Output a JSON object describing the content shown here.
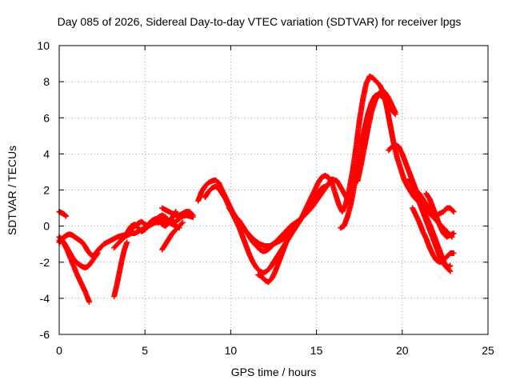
{
  "chart_data": {
    "type": "scatter",
    "title": "Day 085 of 2026, Sidereal Day-to-day VTEC variation (SDTVAR) for receiver lpgs",
    "xlabel": "GPS time / hours",
    "ylabel": "SDTVAR / TECUs",
    "xlim": [
      0,
      25
    ],
    "ylim": [
      -6,
      10
    ],
    "xticks": [
      0,
      5,
      10,
      15,
      20,
      25
    ],
    "yticks": [
      -6,
      -4,
      -2,
      0,
      2,
      4,
      6,
      8,
      10
    ],
    "xtick_labels": [
      "0",
      "5",
      "10",
      "15",
      "20",
      "25"
    ],
    "ytick_labels": [
      "-6",
      "-4",
      "-2",
      "0",
      "2",
      "4",
      "6",
      "8",
      "10"
    ],
    "grid": true,
    "marker": "plus",
    "series": [
      {
        "name": "SDTVAR",
        "color": "#ff0000",
        "tracks": [
          {
            "x": [
              0.0,
              0.15,
              0.3,
              0.45,
              0.6,
              0.75,
              0.9,
              1.05,
              1.2,
              1.35,
              1.5,
              1.65,
              1.8,
              1.95,
              2.1,
              2.25,
              2.4
            ],
            "y": [
              -0.8,
              -0.7,
              -0.6,
              -0.5,
              -0.45,
              -0.5,
              -0.6,
              -0.7,
              -0.8,
              -0.9,
              -1.1,
              -1.35,
              -1.55,
              -1.65,
              -1.55,
              -1.35,
              -1.2
            ]
          },
          {
            "x": [
              0.0,
              0.15,
              0.3,
              0.45,
              0.6,
              0.75,
              0.9,
              1.05,
              1.2,
              1.35,
              1.5,
              1.65,
              1.8,
              1.95,
              2.1,
              2.25
            ],
            "y": [
              -0.6,
              -0.75,
              -0.95,
              -1.2,
              -1.45,
              -1.7,
              -1.9,
              -2.05,
              -2.15,
              -2.25,
              -2.3,
              -2.25,
              -2.1,
              -1.9,
              -1.7,
              -1.5
            ]
          },
          {
            "x": [
              0.0,
              0.15,
              0.3,
              0.45,
              0.6,
              0.75,
              0.9,
              1.05,
              1.2,
              1.35,
              1.5,
              1.65,
              1.75
            ],
            "y": [
              -0.9,
              -0.8,
              -1.0,
              -1.3,
              -1.65,
              -2.0,
              -2.35,
              -2.7,
              -3.0,
              -3.3,
              -3.6,
              -3.95,
              -4.2
            ]
          },
          {
            "x": [
              0.0,
              0.1,
              0.2,
              0.3,
              0.4
            ],
            "y": [
              0.8,
              0.75,
              0.7,
              0.65,
              0.55
            ]
          },
          {
            "x": [
              2.4,
              2.6,
              2.8,
              3.0,
              3.2,
              3.4,
              3.6,
              3.8
            ],
            "y": [
              -1.2,
              -1.0,
              -0.9,
              -0.8,
              -0.7,
              -0.6,
              -0.55,
              -0.5
            ]
          },
          {
            "x": [
              3.2,
              3.35,
              3.5,
              3.65,
              3.8,
              3.95
            ],
            "y": [
              -3.9,
              -3.3,
              -2.6,
              -1.9,
              -1.3,
              -0.9
            ]
          },
          {
            "x": [
              3.2,
              3.4,
              3.6,
              3.8,
              4.0,
              4.2,
              4.4,
              4.6,
              4.8,
              5.0,
              5.2,
              5.4,
              5.6,
              5.8,
              6.0,
              6.2,
              6.4,
              6.6,
              6.8,
              7.0
            ],
            "y": [
              -1.2,
              -1.0,
              -0.8,
              -0.6,
              -0.5,
              -0.4,
              -0.4,
              -0.3,
              -0.2,
              -0.1,
              0.0,
              0.1,
              0.2,
              0.2,
              0.3,
              0.3,
              0.2,
              0.1,
              0.0,
              -0.1
            ]
          },
          {
            "x": [
              3.6,
              3.8,
              4.0,
              4.2,
              4.4,
              4.6,
              4.8,
              5.0,
              5.2,
              5.4,
              5.6,
              5.8,
              6.0,
              6.2,
              6.4,
              6.6,
              6.8
            ],
            "y": [
              -0.8,
              -0.6,
              -0.3,
              0.0,
              0.1,
              -0.1,
              -0.3,
              -0.2,
              0.1,
              0.3,
              0.4,
              0.3,
              0.1,
              0.0,
              0.2,
              0.5,
              0.8
            ]
          },
          {
            "x": [
              4.0,
              4.2,
              4.4,
              4.6,
              4.8,
              5.0,
              5.2,
              5.4,
              5.6,
              5.8,
              6.0,
              6.2,
              6.4,
              6.6,
              6.8,
              7.0,
              7.2,
              7.4,
              7.6,
              7.8
            ],
            "y": [
              -0.4,
              -0.2,
              0.0,
              0.15,
              0.25,
              0.1,
              0.0,
              0.15,
              0.35,
              0.5,
              0.6,
              0.5,
              0.3,
              0.2,
              0.25,
              0.4,
              0.55,
              0.6,
              0.55,
              0.5
            ]
          },
          {
            "x": [
              6.0,
              6.2,
              6.4,
              6.6,
              6.8,
              7.0,
              7.2,
              7.4,
              7.6,
              7.8
            ],
            "y": [
              1.0,
              0.9,
              0.8,
              0.7,
              0.6,
              0.6,
              0.7,
              0.8,
              0.8,
              0.6
            ]
          },
          {
            "x": [
              6.0,
              6.2,
              6.4,
              6.6,
              6.8,
              7.0,
              7.2
            ],
            "y": [
              -1.3,
              -1.0,
              -0.7,
              -0.4,
              -0.2,
              0.0,
              0.2
            ]
          },
          {
            "x": [
              8.1,
              8.3,
              8.5,
              8.7,
              8.9,
              9.1,
              9.3,
              9.5,
              9.7,
              9.9,
              10.1,
              10.3,
              10.5,
              10.7,
              10.9,
              11.1,
              11.3,
              11.5,
              11.7,
              11.9,
              12.1,
              12.3,
              12.5,
              12.7,
              12.9,
              13.1,
              13.3,
              13.5,
              13.7,
              13.9,
              14.1,
              14.3,
              14.5,
              14.7,
              14.9,
              15.1,
              15.3,
              15.5,
              15.7,
              15.9,
              16.1,
              16.3,
              16.5,
              16.7,
              16.9,
              17.1,
              17.3,
              17.5,
              17.7,
              17.9,
              18.1,
              18.3,
              18.5,
              18.7,
              18.9,
              19.1,
              19.3,
              19.5,
              19.7,
              19.9,
              20.1,
              20.3,
              20.5,
              20.7,
              20.9,
              21.1,
              21.3,
              21.5,
              21.7,
              21.9,
              22.1,
              22.3,
              22.5,
              22.7,
              22.9
            ],
            "y": [
              1.4,
              1.9,
              2.2,
              2.4,
              2.5,
              2.55,
              2.4,
              2.0,
              1.6,
              1.2,
              0.8,
              0.5,
              0.3,
              0.0,
              -0.3,
              -0.6,
              -0.9,
              -1.1,
              -1.3,
              -1.4,
              -1.35,
              -1.2,
              -1.0,
              -0.9,
              -0.8,
              -0.7,
              -0.5,
              -0.3,
              -0.1,
              0.1,
              0.4,
              0.8,
              1.2,
              1.6,
              2.0,
              2.4,
              2.7,
              2.8,
              2.7,
              2.4,
              1.8,
              1.2,
              0.8,
              1.2,
              2.0,
              3.0,
              4.3,
              5.8,
              7.0,
              7.9,
              8.3,
              8.2,
              8.0,
              7.8,
              7.4,
              6.6,
              5.6,
              4.6,
              3.8,
              3.2,
              2.6,
              2.2,
              1.9,
              1.6,
              1.4,
              1.2,
              1.0,
              0.8,
              0.6,
              0.4,
              0.2,
              0.0,
              -0.2,
              -0.4,
              -0.6
            ]
          },
          {
            "x": [
              8.5,
              8.7,
              8.9,
              9.1,
              9.3,
              9.5,
              9.7,
              9.9,
              10.1,
              10.3,
              10.5,
              10.7,
              10.9,
              11.1,
              11.3,
              11.5,
              11.7,
              11.9,
              12.1,
              12.3,
              12.5,
              12.7,
              12.9,
              13.1,
              13.3,
              13.5,
              13.7,
              13.9,
              14.1,
              14.3,
              14.5,
              14.7,
              14.9,
              15.1,
              15.3,
              15.5
            ],
            "y": [
              1.6,
              1.9,
              2.1,
              2.2,
              2.1,
              1.8,
              1.5,
              1.1,
              0.7,
              0.3,
              -0.1,
              -0.6,
              -1.1,
              -1.6,
              -2.0,
              -2.3,
              -2.5,
              -2.6,
              -2.5,
              -2.3,
              -2.0,
              -1.7,
              -1.4,
              -1.1,
              -0.8,
              -0.5,
              -0.2,
              0.1,
              0.4,
              0.7,
              1.0,
              1.3,
              1.6,
              1.9,
              2.1,
              2.2
            ]
          },
          {
            "x": [
              9.9,
              10.2,
              10.5,
              10.8,
              11.1,
              11.4,
              11.7,
              12.0,
              12.3,
              12.6,
              12.9,
              13.2,
              13.5,
              13.8,
              14.1,
              14.4,
              14.7,
              15.0,
              15.3,
              15.6,
              15.9,
              16.2,
              16.5,
              16.8
            ],
            "y": [
              1.0,
              0.6,
              0.2,
              -0.2,
              -0.5,
              -0.8,
              -1.0,
              -1.1,
              -1.1,
              -0.9,
              -0.6,
              -0.3,
              0.0,
              0.2,
              0.4,
              0.7,
              1.0,
              1.4,
              1.8,
              2.2,
              2.6,
              2.5,
              2.0,
              1.5
            ]
          },
          {
            "x": [
              11.6,
              11.8,
              12.0,
              12.2,
              12.4,
              12.6,
              12.8,
              13.0,
              13.2,
              13.4,
              13.6
            ],
            "y": [
              -2.7,
              -2.8,
              -3.0,
              -3.1,
              -2.9,
              -2.5,
              -2.0,
              -1.5,
              -1.0,
              -0.5,
              -0.1
            ]
          },
          {
            "x": [
              16.4,
              16.6,
              16.8,
              17.0,
              17.2,
              17.4,
              17.6,
              17.8,
              18.0,
              18.2,
              18.4,
              18.6,
              18.8,
              19.0,
              19.2,
              19.4,
              19.6
            ],
            "y": [
              -0.1,
              0.0,
              0.5,
              1.2,
              2.2,
              3.3,
              4.4,
              5.4,
              6.2,
              6.8,
              7.2,
              7.3,
              7.2,
              7.0,
              6.7,
              6.4,
              6.2
            ]
          },
          {
            "x": [
              17.4,
              17.6,
              17.8,
              18.0,
              18.2,
              18.4,
              18.6,
              18.8,
              19.0,
              19.2,
              19.4,
              19.6
            ],
            "y": [
              2.5,
              3.4,
              4.4,
              5.4,
              6.3,
              6.9,
              7.3,
              7.5,
              7.4,
              7.1,
              6.7,
              6.3
            ]
          },
          {
            "x": [
              19.2,
              19.4,
              19.6,
              19.8,
              20.0,
              20.2,
              20.4,
              20.6,
              20.8,
              21.0,
              21.2,
              21.4,
              21.6,
              21.8,
              22.0,
              22.2,
              22.4,
              22.6,
              22.8
            ],
            "y": [
              4.2,
              4.4,
              4.5,
              4.4,
              4.0,
              3.5,
              3.0,
              2.5,
              2.0,
              1.5,
              1.0,
              0.5,
              0.1,
              -0.4,
              -0.9,
              -1.4,
              -1.9,
              -2.3,
              -2.5
            ]
          },
          {
            "x": [
              20.4,
              20.6,
              20.8,
              21.0,
              21.2,
              21.4,
              21.6,
              21.8,
              22.0,
              22.2,
              22.4,
              22.6,
              22.8
            ],
            "y": [
              2.6,
              2.2,
              1.8,
              1.3,
              0.8,
              0.3,
              -0.2,
              -0.7,
              -1.2,
              -1.7,
              -2.1,
              -2.3,
              -2.2
            ]
          },
          {
            "x": [
              20.6,
              20.8,
              21.0,
              21.2,
              21.4,
              21.6,
              21.8,
              22.0,
              22.2,
              22.4,
              22.6,
              22.8,
              23.0
            ],
            "y": [
              1.0,
              0.6,
              0.2,
              -0.3,
              -0.7,
              -1.2,
              -1.6,
              -1.9,
              -2.0,
              -1.9,
              -1.7,
              -1.5,
              -1.5
            ]
          },
          {
            "x": [
              20.8,
              21.0,
              21.2,
              21.4,
              21.6,
              21.8,
              22.0,
              22.2,
              22.4,
              22.6,
              22.8,
              23.0
            ],
            "y": [
              2.0,
              1.8,
              1.5,
              1.2,
              0.9,
              0.7,
              0.6,
              0.7,
              0.8,
              1.0,
              1.0,
              0.8
            ]
          },
          {
            "x": [
              21.4,
              21.6,
              21.8,
              22.0,
              22.2,
              22.4,
              22.6,
              22.8,
              23.0
            ],
            "y": [
              1.8,
              1.5,
              1.0,
              0.5,
              0.0,
              -0.4,
              -0.6,
              -0.5,
              -0.4
            ]
          }
        ]
      }
    ]
  }
}
